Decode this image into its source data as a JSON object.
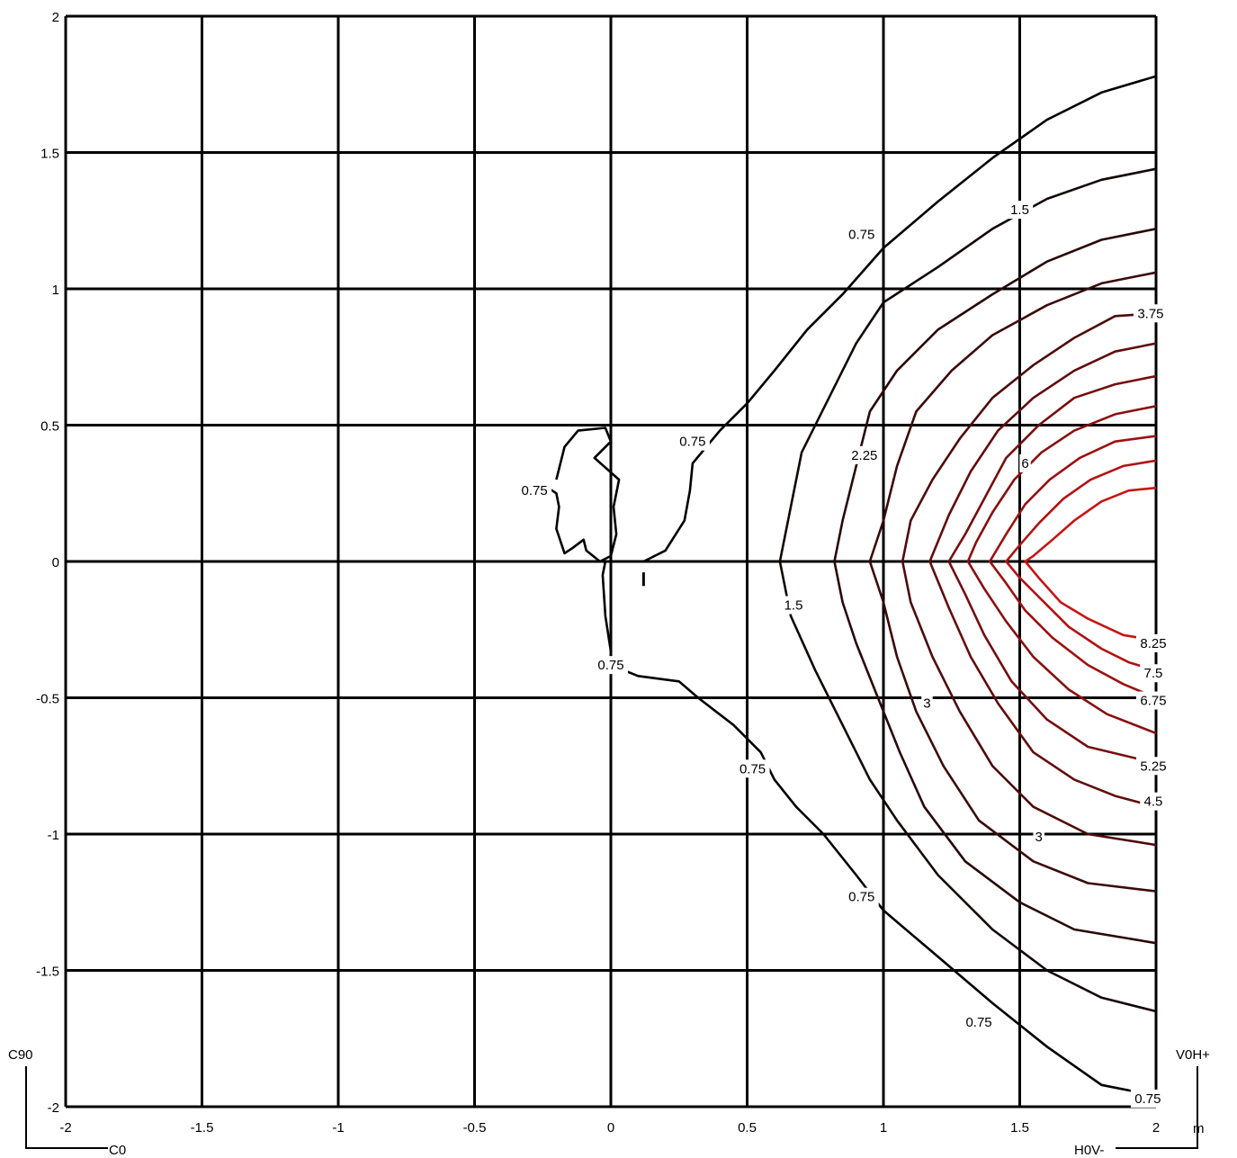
{
  "chart_data": {
    "type": "contour",
    "xlim": [
      -2,
      2
    ],
    "ylim": [
      -2,
      2
    ],
    "x_ticks": [
      "-2",
      "-1.5",
      "-1",
      "-0.5",
      "0",
      "0.5",
      "1",
      "1.5",
      "2"
    ],
    "y_ticks": [
      "2",
      "1.5",
      "1",
      "0.5",
      "0",
      "-0.5",
      "-1",
      "-1.5",
      "-2"
    ],
    "unit": "m",
    "grid": true,
    "corner_labels": {
      "left_top": "C90",
      "left_bottom": "C0",
      "right_top": "V0H+",
      "right_bottom": "H0V-"
    },
    "contours": [
      {
        "level": 0.75,
        "color": "#000000",
        "points": [
          [
            2.0,
            1.78
          ],
          [
            1.8,
            1.72
          ],
          [
            1.6,
            1.62
          ],
          [
            1.4,
            1.48
          ],
          [
            1.2,
            1.32
          ],
          [
            1.0,
            1.15
          ],
          [
            0.85,
            0.98
          ],
          [
            0.72,
            0.85
          ],
          [
            0.6,
            0.7
          ],
          [
            0.5,
            0.58
          ],
          [
            0.4,
            0.48
          ],
          [
            0.3,
            0.36
          ],
          [
            0.29,
            0.26
          ],
          [
            0.27,
            0.15
          ],
          [
            0.2,
            0.04
          ],
          [
            0.12,
            0.0
          ]
        ]
      },
      {
        "level": 0.75,
        "color": "#000000",
        "points": [
          [
            0.0,
            -0.33
          ],
          [
            -0.02,
            -0.2
          ],
          [
            -0.03,
            -0.05
          ],
          [
            -0.02,
            0.0
          ],
          [
            0.1,
            0.0
          ]
        ]
      },
      {
        "level": 0.75,
        "color": "#000000",
        "points": [
          [
            0.0,
            -0.38
          ],
          [
            0.1,
            -0.42
          ],
          [
            0.25,
            -0.44
          ],
          [
            0.32,
            -0.5
          ],
          [
            0.45,
            -0.6
          ],
          [
            0.55,
            -0.7
          ],
          [
            0.6,
            -0.8
          ],
          [
            0.68,
            -0.9
          ],
          [
            0.78,
            -1.0
          ],
          [
            0.9,
            -1.15
          ],
          [
            1.0,
            -1.28
          ],
          [
            1.2,
            -1.45
          ],
          [
            1.4,
            -1.62
          ],
          [
            1.6,
            -1.78
          ],
          [
            1.8,
            -1.92
          ],
          [
            2.0,
            -1.96
          ]
        ]
      },
      {
        "level": 0.75,
        "color": "#000000",
        "points": [
          [
            -0.2,
            0.3
          ],
          [
            -0.17,
            0.42
          ],
          [
            -0.12,
            0.48
          ],
          [
            -0.02,
            0.49
          ],
          [
            0.0,
            0.44
          ],
          [
            -0.06,
            0.38
          ],
          [
            0.03,
            0.3
          ],
          [
            0.01,
            0.2
          ],
          [
            0.02,
            0.1
          ],
          [
            0.0,
            0.02
          ],
          [
            -0.04,
            0.0
          ],
          [
            -0.09,
            0.04
          ],
          [
            -0.1,
            0.08
          ],
          [
            -0.14,
            0.05
          ],
          [
            -0.17,
            0.03
          ],
          [
            -0.2,
            0.12
          ],
          [
            -0.19,
            0.2
          ],
          [
            -0.2,
            0.25
          ],
          [
            -0.23,
            0.27
          ]
        ]
      },
      {
        "level": 1.5,
        "color": "#140505",
        "points": [
          [
            2.0,
            1.44
          ],
          [
            1.8,
            1.4
          ],
          [
            1.6,
            1.33
          ],
          [
            1.4,
            1.22
          ],
          [
            1.2,
            1.08
          ],
          [
            1.0,
            0.95
          ],
          [
            0.9,
            0.8
          ],
          [
            0.8,
            0.6
          ],
          [
            0.7,
            0.4
          ],
          [
            0.66,
            0.2
          ],
          [
            0.62,
            0.0
          ],
          [
            0.66,
            -0.2
          ],
          [
            0.75,
            -0.4
          ],
          [
            0.85,
            -0.6
          ],
          [
            0.95,
            -0.8
          ],
          [
            1.05,
            -0.95
          ],
          [
            1.2,
            -1.15
          ],
          [
            1.4,
            -1.35
          ],
          [
            1.6,
            -1.5
          ],
          [
            1.8,
            -1.6
          ],
          [
            2.0,
            -1.65
          ]
        ]
      },
      {
        "level": 2.25,
        "color": "#2a0808",
        "points": [
          [
            2.0,
            1.22
          ],
          [
            1.8,
            1.18
          ],
          [
            1.6,
            1.1
          ],
          [
            1.4,
            0.98
          ],
          [
            1.2,
            0.85
          ],
          [
            1.05,
            0.7
          ],
          [
            0.95,
            0.55
          ],
          [
            0.9,
            0.35
          ],
          [
            0.85,
            0.15
          ],
          [
            0.82,
            0.0
          ],
          [
            0.85,
            -0.15
          ],
          [
            0.9,
            -0.3
          ],
          [
            0.98,
            -0.5
          ],
          [
            1.06,
            -0.7
          ],
          [
            1.15,
            -0.9
          ],
          [
            1.3,
            -1.1
          ],
          [
            1.5,
            -1.25
          ],
          [
            1.7,
            -1.35
          ],
          [
            2.0,
            -1.4
          ]
        ]
      },
      {
        "level": 3.0,
        "color": "#3c0a0a",
        "points": [
          [
            2.0,
            1.06
          ],
          [
            1.8,
            1.02
          ],
          [
            1.6,
            0.94
          ],
          [
            1.4,
            0.83
          ],
          [
            1.25,
            0.7
          ],
          [
            1.12,
            0.55
          ],
          [
            1.05,
            0.35
          ],
          [
            1.0,
            0.15
          ],
          [
            0.95,
            0.0
          ],
          [
            1.0,
            -0.15
          ],
          [
            1.05,
            -0.35
          ],
          [
            1.12,
            -0.55
          ],
          [
            1.22,
            -0.75
          ],
          [
            1.35,
            -0.95
          ],
          [
            1.55,
            -1.1
          ],
          [
            1.75,
            -1.18
          ],
          [
            2.0,
            -1.21
          ]
        ]
      },
      {
        "level": 3.75,
        "color": "#4e0b0b",
        "points": [
          [
            2.0,
            0.91
          ],
          [
            1.85,
            0.9
          ],
          [
            1.7,
            0.82
          ],
          [
            1.55,
            0.72
          ],
          [
            1.4,
            0.6
          ],
          [
            1.28,
            0.45
          ],
          [
            1.18,
            0.3
          ],
          [
            1.1,
            0.15
          ],
          [
            1.07,
            0.0
          ],
          [
            1.1,
            -0.15
          ],
          [
            1.18,
            -0.35
          ],
          [
            1.28,
            -0.55
          ],
          [
            1.4,
            -0.75
          ],
          [
            1.55,
            -0.9
          ],
          [
            1.75,
            -1.0
          ],
          [
            2.0,
            -1.04
          ]
        ]
      },
      {
        "level": 4.5,
        "color": "#620c0c",
        "points": [
          [
            2.0,
            0.8
          ],
          [
            1.85,
            0.77
          ],
          [
            1.7,
            0.7
          ],
          [
            1.55,
            0.6
          ],
          [
            1.42,
            0.48
          ],
          [
            1.32,
            0.33
          ],
          [
            1.24,
            0.17
          ],
          [
            1.17,
            0.0
          ],
          [
            1.24,
            -0.17
          ],
          [
            1.32,
            -0.35
          ],
          [
            1.42,
            -0.52
          ],
          [
            1.55,
            -0.7
          ],
          [
            1.7,
            -0.8
          ],
          [
            1.85,
            -0.86
          ],
          [
            2.0,
            -0.9
          ]
        ]
      },
      {
        "level": 5.25,
        "color": "#760e0e",
        "points": [
          [
            2.0,
            0.68
          ],
          [
            1.85,
            0.65
          ],
          [
            1.7,
            0.6
          ],
          [
            1.57,
            0.5
          ],
          [
            1.45,
            0.38
          ],
          [
            1.37,
            0.23
          ],
          [
            1.3,
            0.1
          ],
          [
            1.24,
            0.0
          ],
          [
            1.3,
            -0.12
          ],
          [
            1.37,
            -0.27
          ],
          [
            1.47,
            -0.44
          ],
          [
            1.6,
            -0.58
          ],
          [
            1.75,
            -0.68
          ],
          [
            2.0,
            -0.74
          ]
        ]
      },
      {
        "level": 6.0,
        "color": "#8a0f0f",
        "points": [
          [
            2.0,
            0.57
          ],
          [
            1.85,
            0.54
          ],
          [
            1.7,
            0.48
          ],
          [
            1.58,
            0.4
          ],
          [
            1.48,
            0.3
          ],
          [
            1.4,
            0.18
          ],
          [
            1.34,
            0.07
          ],
          [
            1.31,
            0.0
          ],
          [
            1.37,
            -0.1
          ],
          [
            1.45,
            -0.22
          ],
          [
            1.55,
            -0.35
          ],
          [
            1.68,
            -0.47
          ],
          [
            1.82,
            -0.56
          ],
          [
            2.0,
            -0.63
          ]
        ]
      },
      {
        "level": 6.75,
        "color": "#9e1010",
        "points": [
          [
            2.0,
            0.46
          ],
          [
            1.85,
            0.44
          ],
          [
            1.72,
            0.38
          ],
          [
            1.61,
            0.3
          ],
          [
            1.52,
            0.21
          ],
          [
            1.45,
            0.1
          ],
          [
            1.39,
            0.0
          ],
          [
            1.45,
            -0.08
          ],
          [
            1.52,
            -0.18
          ],
          [
            1.62,
            -0.28
          ],
          [
            1.75,
            -0.38
          ],
          [
            1.88,
            -0.45
          ],
          [
            2.0,
            -0.5
          ]
        ]
      },
      {
        "level": 7.5,
        "color": "#b31212",
        "points": [
          [
            2.0,
            0.37
          ],
          [
            1.88,
            0.35
          ],
          [
            1.76,
            0.3
          ],
          [
            1.66,
            0.23
          ],
          [
            1.57,
            0.14
          ],
          [
            1.5,
            0.06
          ],
          [
            1.45,
            0.0
          ],
          [
            1.5,
            -0.06
          ],
          [
            1.58,
            -0.14
          ],
          [
            1.68,
            -0.24
          ],
          [
            1.8,
            -0.32
          ],
          [
            1.9,
            -0.37
          ],
          [
            2.0,
            -0.4
          ]
        ]
      },
      {
        "level": 8.25,
        "color": "#c81414",
        "points": [
          [
            2.0,
            0.27
          ],
          [
            1.9,
            0.26
          ],
          [
            1.8,
            0.22
          ],
          [
            1.7,
            0.15
          ],
          [
            1.62,
            0.08
          ],
          [
            1.55,
            0.02
          ],
          [
            1.52,
            0.0
          ],
          [
            1.57,
            -0.06
          ],
          [
            1.65,
            -0.15
          ],
          [
            1.75,
            -0.21
          ],
          [
            1.88,
            -0.27
          ],
          [
            2.0,
            -0.29
          ]
        ]
      }
    ],
    "contour_labels": [
      {
        "text": "0.75",
        "x": 0.92,
        "y": 1.2
      },
      {
        "text": "0.75",
        "x": 0.3,
        "y": 0.44
      },
      {
        "text": "0.75",
        "x": -0.28,
        "y": 0.26
      },
      {
        "text": "0.75",
        "x": 0.0,
        "y": -0.38
      },
      {
        "text": "0.75",
        "x": 0.52,
        "y": -0.76
      },
      {
        "text": "0.75",
        "x": 0.92,
        "y": -1.23
      },
      {
        "text": "0.75",
        "x": 1.35,
        "y": -1.69
      },
      {
        "text": "0.75",
        "x": 1.97,
        "y": -1.97
      },
      {
        "text": "1.5",
        "x": 1.5,
        "y": 1.29
      },
      {
        "text": "1.5",
        "x": 0.67,
        "y": -0.16
      },
      {
        "text": "2.25",
        "x": 0.93,
        "y": 0.39
      },
      {
        "text": "3",
        "x": 1.16,
        "y": -0.52
      },
      {
        "text": "3",
        "x": 1.57,
        "y": -1.01
      },
      {
        "text": "3.75",
        "x": 1.98,
        "y": 0.91
      },
      {
        "text": "6",
        "x": 1.52,
        "y": 0.36
      },
      {
        "text": "8.25",
        "x": 1.99,
        "y": -0.3
      },
      {
        "text": "7.5",
        "x": 1.99,
        "y": -0.41
      },
      {
        "text": "6.75",
        "x": 1.99,
        "y": -0.51
      },
      {
        "text": "5.25",
        "x": 1.99,
        "y": -0.75
      },
      {
        "text": "4.5",
        "x": 1.99,
        "y": -0.88
      }
    ]
  }
}
